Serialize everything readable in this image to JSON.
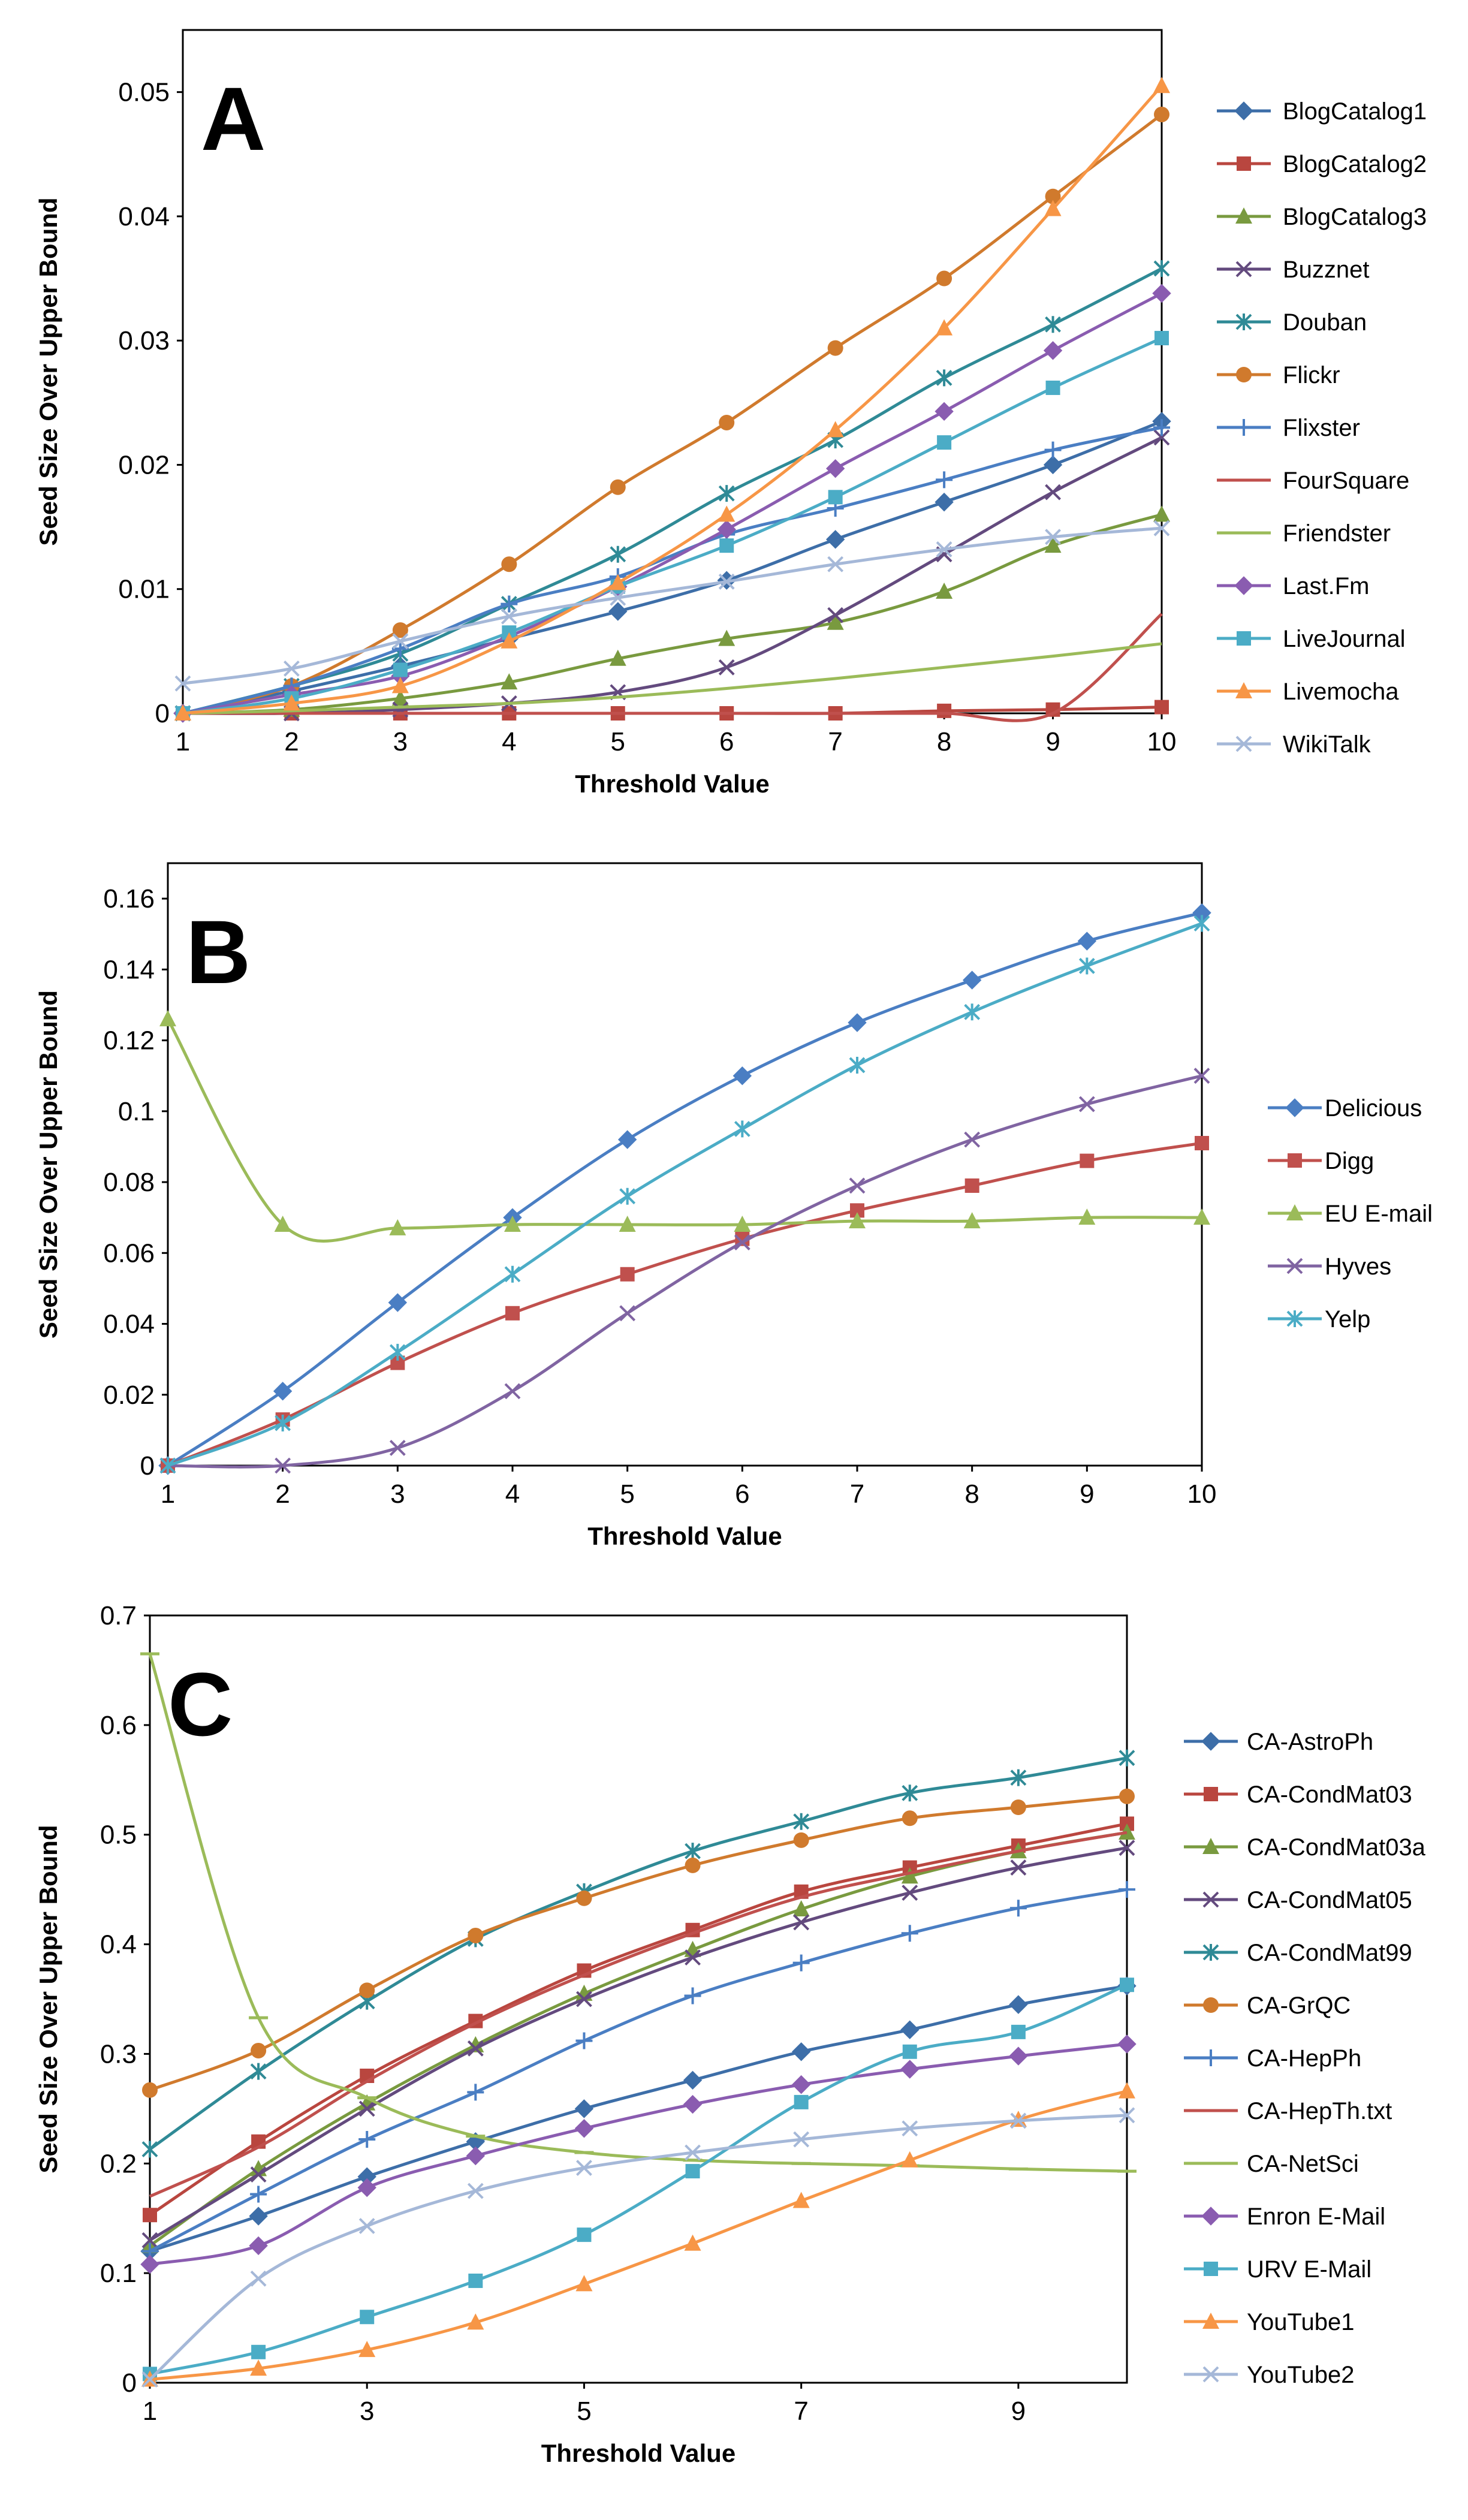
{
  "chart_data": [
    {
      "panel": "A",
      "type": "line",
      "xlabel": "Threshold Value",
      "ylabel": "Seed Size Over Upper Bound",
      "xlim": [
        1,
        10
      ],
      "ylim": [
        0,
        0.055
      ],
      "x_ticks": [
        "1",
        "2",
        "3",
        "4",
        "5",
        "6",
        "7",
        "8",
        "9",
        "10"
      ],
      "y_ticks": [
        "0",
        "0.01",
        "0.02",
        "0.03",
        "0.04",
        "0.05"
      ],
      "x": [
        1,
        2,
        3,
        4,
        5,
        6,
        7,
        8,
        9,
        10
      ],
      "series": [
        {
          "name": "BlogCatalog1",
          "color": "#3d6ea8",
          "marker": "diamond",
          "values": [
            0,
            0.0018,
            0.0038,
            0.006,
            0.0082,
            0.0107,
            0.014,
            0.017,
            0.02,
            0.0235
          ]
        },
        {
          "name": "BlogCatalog2",
          "color": "#b9463f",
          "marker": "square",
          "values": [
            0,
            0,
            0,
            0,
            0,
            0,
            0,
            0.0002,
            0.0003,
            0.0005
          ]
        },
        {
          "name": "BlogCatalog3",
          "color": "#799a3f",
          "marker": "triangle",
          "values": [
            0,
            0.0003,
            0.0012,
            0.0025,
            0.0044,
            0.006,
            0.0073,
            0.0098,
            0.0135,
            0.016
          ]
        },
        {
          "name": "Buzznet",
          "color": "#634a7e",
          "marker": "x",
          "values": [
            0,
            0,
            0.0003,
            0.0008,
            0.0017,
            0.0037,
            0.0079,
            0.0128,
            0.0178,
            0.0222
          ]
        },
        {
          "name": "Douban",
          "color": "#2f8a96",
          "marker": "asterisk",
          "values": [
            0,
            0.0022,
            0.0048,
            0.0088,
            0.0128,
            0.0177,
            0.022,
            0.027,
            0.0313,
            0.0358
          ]
        },
        {
          "name": "Flickr",
          "color": "#d07a2d",
          "marker": "circle",
          "values": [
            0,
            0.0022,
            0.0067,
            0.012,
            0.0182,
            0.0234,
            0.0294,
            0.035,
            0.0416,
            0.0482
          ]
        },
        {
          "name": "Flixster",
          "color": "#4a7ec3",
          "marker": "plus",
          "values": [
            0,
            0.0022,
            0.0052,
            0.0088,
            0.011,
            0.0144,
            0.0165,
            0.0188,
            0.0212,
            0.023
          ]
        },
        {
          "name": "FourSquare",
          "color": "#c0504d",
          "marker": "none",
          "values": [
            0,
            0,
            0,
            0,
            0,
            0,
            0,
            0,
            0,
            0.008
          ]
        },
        {
          "name": "Friendster",
          "color": "#9bbb59",
          "marker": "none",
          "values": [
            0,
            0.0002,
            0.0005,
            0.0008,
            0.0013,
            0.002,
            0.0028,
            0.0037,
            0.0046,
            0.0056
          ]
        },
        {
          "name": "Last.Fm",
          "color": "#8a5cb0",
          "marker": "diamond",
          "values": [
            0,
            0.0015,
            0.003,
            0.0062,
            0.0102,
            0.0148,
            0.0197,
            0.0243,
            0.0292,
            0.0338
          ]
        },
        {
          "name": "LiveJournal",
          "color": "#4bacc6",
          "marker": "square",
          "values": [
            0,
            0.0012,
            0.0035,
            0.0065,
            0.0102,
            0.0135,
            0.0174,
            0.0218,
            0.0262,
            0.0302
          ]
        },
        {
          "name": "Livemocha",
          "color": "#f79646",
          "marker": "triangle",
          "values": [
            0,
            0.0008,
            0.0022,
            0.0058,
            0.0105,
            0.016,
            0.0228,
            0.031,
            0.0406,
            0.0505
          ]
        },
        {
          "name": "WikiTalk",
          "color": "#a5b8d8",
          "marker": "x",
          "values": [
            0.0024,
            0.0036,
            0.0058,
            0.0078,
            0.0093,
            0.0106,
            0.012,
            0.0132,
            0.0142,
            0.0149
          ]
        }
      ]
    },
    {
      "panel": "B",
      "type": "line",
      "xlabel": "Threshold Value",
      "ylabel": "Seed Size Over Upper Bound",
      "xlim": [
        1,
        10
      ],
      "ylim": [
        0,
        0.17
      ],
      "x_ticks": [
        "1",
        "2",
        "3",
        "4",
        "5",
        "6",
        "7",
        "8",
        "9",
        "10"
      ],
      "y_ticks": [
        "0",
        "0.02",
        "0.04",
        "0.06",
        "0.08",
        "0.1",
        "0.12",
        "0.14",
        "0.16"
      ],
      "x": [
        1,
        2,
        3,
        4,
        5,
        6,
        7,
        8,
        9,
        10
      ],
      "series": [
        {
          "name": "Delicious",
          "color": "#4a7ec3",
          "marker": "diamond",
          "values": [
            0,
            0.021,
            0.046,
            0.07,
            0.092,
            0.11,
            0.125,
            0.137,
            0.148,
            0.156
          ]
        },
        {
          "name": "Digg",
          "color": "#c0504d",
          "marker": "square",
          "values": [
            0,
            0.013,
            0.029,
            0.043,
            0.054,
            0.064,
            0.072,
            0.079,
            0.086,
            0.091
          ]
        },
        {
          "name": "EU E-mail",
          "color": "#9bbb59",
          "marker": "triangle",
          "values": [
            0.126,
            0.068,
            0.067,
            0.068,
            0.068,
            0.068,
            0.069,
            0.069,
            0.07,
            0.07
          ]
        },
        {
          "name": "Hyves",
          "color": "#8064a2",
          "marker": "x",
          "values": [
            0,
            0,
            0.005,
            0.021,
            0.043,
            0.063,
            0.079,
            0.092,
            0.102,
            0.11
          ]
        },
        {
          "name": "Yelp",
          "color": "#4bacc6",
          "marker": "asterisk",
          "values": [
            0,
            0.012,
            0.032,
            0.054,
            0.076,
            0.095,
            0.113,
            0.128,
            0.141,
            0.153
          ]
        }
      ]
    },
    {
      "panel": "C",
      "type": "line",
      "xlabel": "Threshold Value",
      "ylabel": "Seed Size Over Upper Bound",
      "xlim": [
        1,
        10
      ],
      "ylim": [
        0,
        0.7
      ],
      "x_ticks": [
        "1",
        "3",
        "5",
        "7",
        "9"
      ],
      "y_ticks": [
        "0",
        "0.1",
        "0.2",
        "0.3",
        "0.4",
        "0.5",
        "0.6",
        "0.7"
      ],
      "x": [
        1,
        2,
        3,
        4,
        5,
        6,
        7,
        8,
        9,
        10
      ],
      "series": [
        {
          "name": "CA-AstroPh",
          "color": "#3d6ea8",
          "marker": "diamond",
          "values": [
            0.12,
            0.152,
            0.188,
            0.22,
            0.25,
            0.276,
            0.302,
            0.322,
            0.345,
            0.362
          ]
        },
        {
          "name": "CA-CondMat03",
          "color": "#b9463f",
          "marker": "square",
          "values": [
            0.153,
            0.22,
            0.28,
            0.33,
            0.376,
            0.413,
            0.448,
            0.47,
            0.49,
            0.51
          ]
        },
        {
          "name": "CA-CondMat03a",
          "color": "#799a3f",
          "marker": "triangle",
          "values": [
            0.125,
            0.195,
            0.255,
            0.308,
            0.355,
            0.395,
            0.432,
            0.462,
            0.485,
            0.502
          ]
        },
        {
          "name": "CA-CondMat05",
          "color": "#634a7e",
          "marker": "x",
          "values": [
            0.13,
            0.19,
            0.25,
            0.305,
            0.35,
            0.388,
            0.42,
            0.447,
            0.47,
            0.488
          ]
        },
        {
          "name": "CA-CondMat99",
          "color": "#2f8a96",
          "marker": "asterisk",
          "values": [
            0.213,
            0.284,
            0.348,
            0.405,
            0.448,
            0.485,
            0.512,
            0.538,
            0.552,
            0.57
          ]
        },
        {
          "name": "CA-GrQC",
          "color": "#d07a2d",
          "marker": "circle",
          "values": [
            0.267,
            0.303,
            0.358,
            0.408,
            0.442,
            0.472,
            0.495,
            0.515,
            0.525,
            0.535
          ]
        },
        {
          "name": "CA-HepPh",
          "color": "#4a7ec3",
          "marker": "plus",
          "values": [
            0.12,
            0.172,
            0.222,
            0.265,
            0.312,
            0.353,
            0.383,
            0.41,
            0.433,
            0.45
          ]
        },
        {
          "name": "CA-HepTh.txt",
          "color": "#c0504d",
          "marker": "none",
          "values": [
            0.17,
            0.215,
            0.275,
            0.328,
            0.372,
            0.41,
            0.443,
            0.465,
            0.485,
            0.502
          ]
        },
        {
          "name": "CA-NetSci",
          "color": "#9bbb59",
          "marker": "dash",
          "values": [
            0.665,
            0.333,
            0.26,
            0.225,
            0.21,
            0.203,
            0.2,
            0.198,
            0.195,
            0.193
          ]
        },
        {
          "name": "Enron E-Mail",
          "color": "#8a5cb0",
          "marker": "diamond",
          "values": [
            0.108,
            0.125,
            0.178,
            0.207,
            0.232,
            0.254,
            0.272,
            0.286,
            0.298,
            0.309
          ]
        },
        {
          "name": "URV E-Mail",
          "color": "#4bacc6",
          "marker": "square",
          "values": [
            0.008,
            0.028,
            0.06,
            0.093,
            0.135,
            0.193,
            0.256,
            0.302,
            0.32,
            0.363
          ]
        },
        {
          "name": "YouTube1",
          "color": "#f79646",
          "marker": "triangle",
          "values": [
            0.003,
            0.013,
            0.03,
            0.055,
            0.09,
            0.127,
            0.166,
            0.203,
            0.24,
            0.266
          ]
        },
        {
          "name": "YouTube2",
          "color": "#a5b8d8",
          "marker": "x",
          "values": [
            0.003,
            0.095,
            0.143,
            0.175,
            0.196,
            0.21,
            0.222,
            0.232,
            0.239,
            0.244
          ]
        }
      ]
    }
  ]
}
